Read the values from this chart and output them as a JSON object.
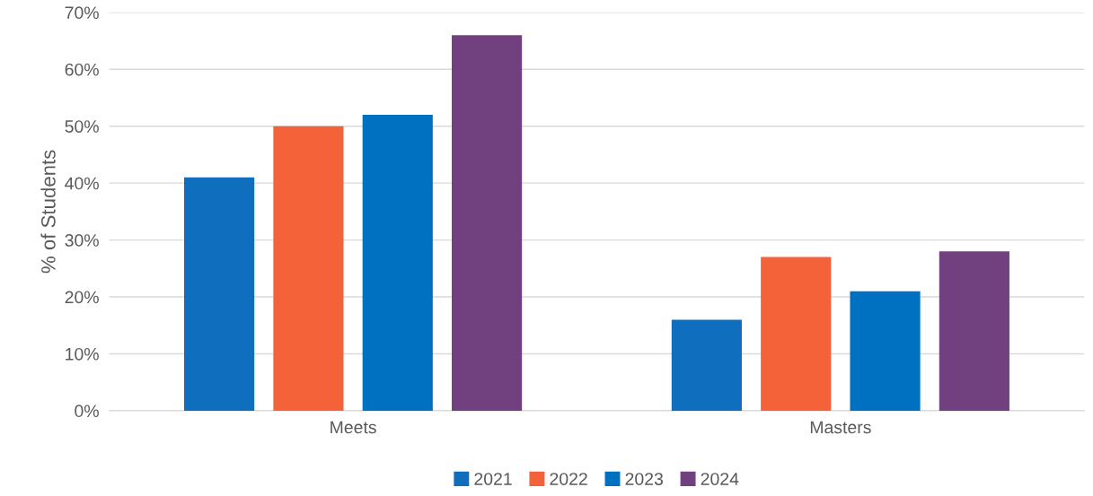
{
  "chart_data": {
    "type": "bar",
    "ylabel": "% of Students",
    "categories": [
      "Meets",
      "Masters"
    ],
    "series": [
      {
        "name": "2021",
        "color": "#106ebe",
        "values": [
          41,
          16
        ]
      },
      {
        "name": "2022",
        "color": "#f4623a",
        "values": [
          50,
          27
        ]
      },
      {
        "name": "2023",
        "color": "#0070c0",
        "values": [
          52,
          21
        ]
      },
      {
        "name": "2024",
        "color": "#71417f",
        "values": [
          66,
          28
        ]
      }
    ],
    "ylim": [
      0,
      70
    ],
    "yticks": [
      {
        "value": 0,
        "label": "0%"
      },
      {
        "value": 10,
        "label": "10%"
      },
      {
        "value": 20,
        "label": "20%"
      },
      {
        "value": 30,
        "label": "30%"
      },
      {
        "value": 40,
        "label": "40%"
      },
      {
        "value": 50,
        "label": "50%"
      },
      {
        "value": 60,
        "label": "60%"
      },
      {
        "value": 70,
        "label": "70%"
      }
    ],
    "grid": "y",
    "legend": "bottom"
  }
}
